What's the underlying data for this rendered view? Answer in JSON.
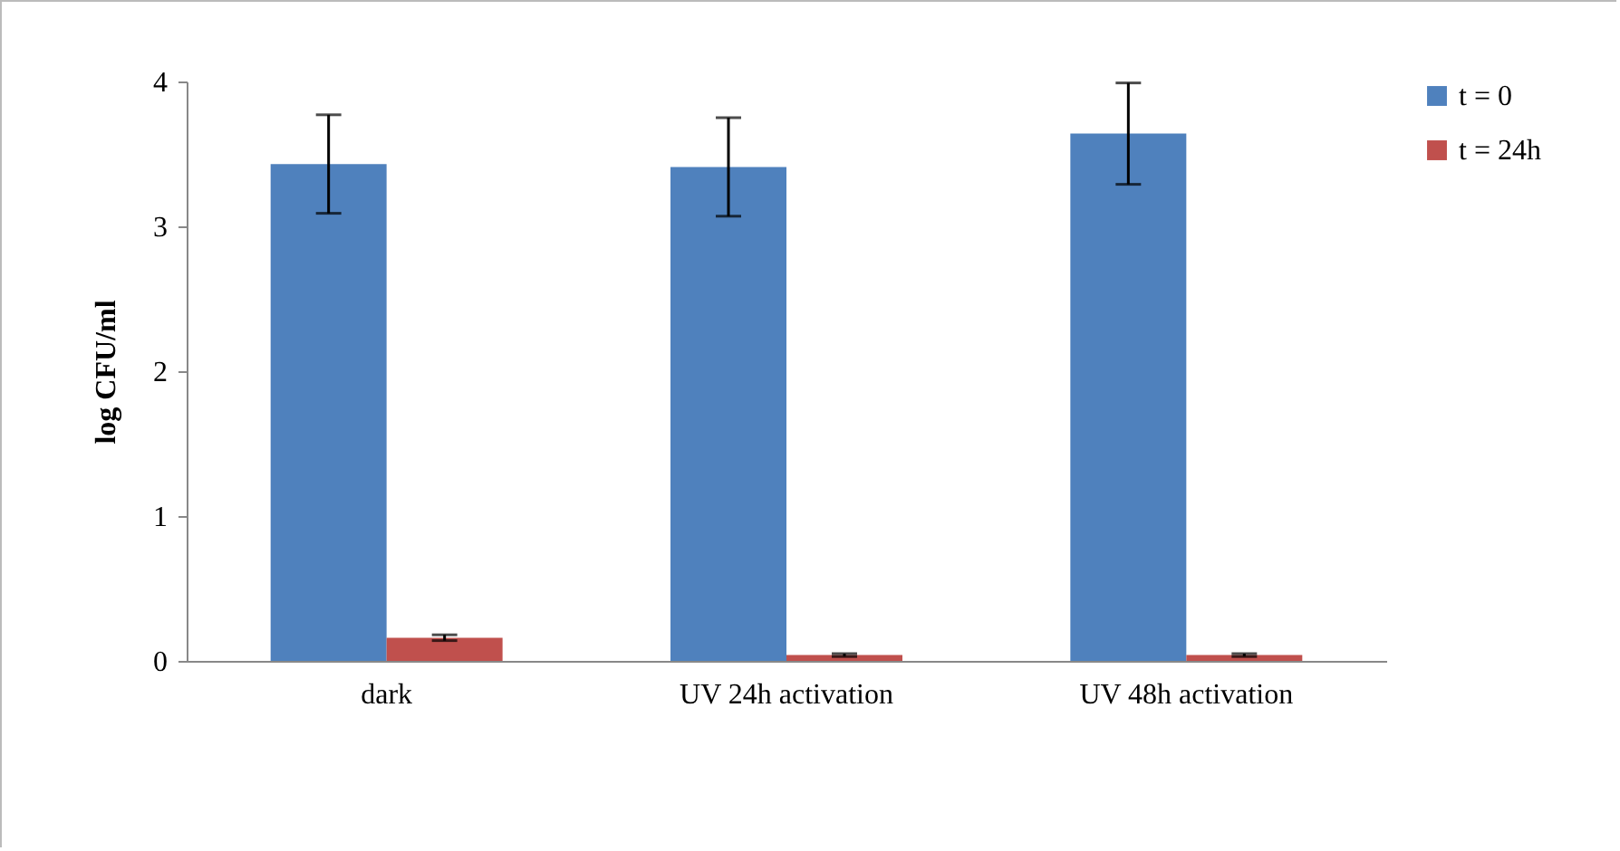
{
  "chart_data": {
    "type": "bar",
    "ylabel": "log CFU/ml",
    "categories": [
      "dark",
      "UV 24h activation",
      "UV 48h activation"
    ],
    "series": [
      {
        "name": "t = 0",
        "color": "#4f81bd",
        "values": [
          3.43,
          3.41,
          3.64
        ],
        "errors": [
          0.34,
          0.34,
          0.35
        ]
      },
      {
        "name": "t = 24h",
        "color": "#c0504d",
        "values": [
          0.16,
          0.04,
          0.04
        ],
        "errors": [
          0.02,
          0.01,
          0.01
        ]
      }
    ],
    "ylim": [
      0,
      4
    ],
    "yticks": [
      0,
      1,
      2,
      3,
      4
    ],
    "grid": false,
    "legend": "right"
  }
}
